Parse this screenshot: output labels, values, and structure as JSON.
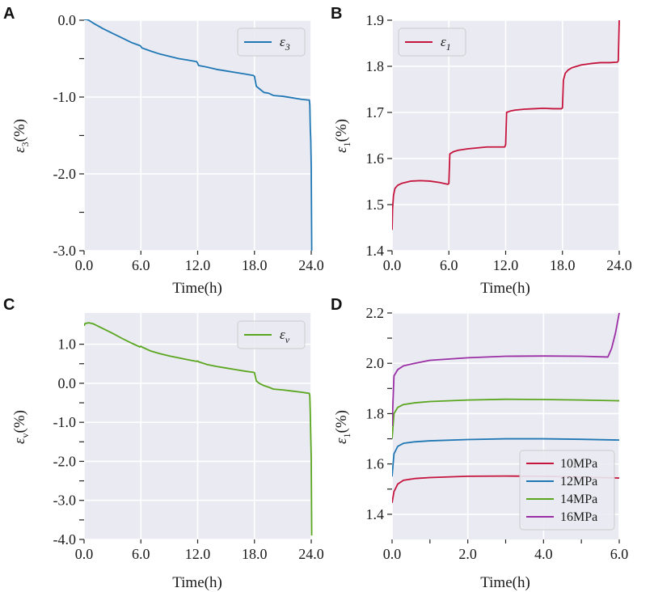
{
  "figure": {
    "background": "#eaeaf2",
    "grid_color": "#ffffff"
  },
  "chart_data": [
    {
      "panel": "A",
      "type": "line",
      "xlabel": "Time(h)",
      "ylabel": {
        "symbol": "ε",
        "sub": "3",
        "unit": "(%)"
      },
      "xlim": [
        0,
        24
      ],
      "ylim": [
        -3.0,
        0.0
      ],
      "xticks": [
        0,
        6,
        12,
        18,
        24
      ],
      "xtick_labels": [
        "0.0",
        "6.0",
        "12.0",
        "18.0",
        "24.0"
      ],
      "yticks": [
        0.0,
        -1.0,
        -2.0,
        -3.0
      ],
      "ytick_labels": [
        "0.0",
        "-1.0",
        "-2.0",
        "-3.0"
      ],
      "yminor": [
        -0.5,
        -1.5,
        -2.5
      ],
      "legend": {
        "position": "top-right",
        "entries": [
          {
            "symbol": "ε",
            "sub": "3"
          }
        ]
      },
      "series": [
        {
          "name": "ε3",
          "color": "#1f77b4",
          "x": [
            0,
            0.2,
            0.5,
            1,
            2,
            3,
            4,
            5,
            5.9,
            6.0,
            6.1,
            7,
            8,
            9,
            10,
            11,
            11.9,
            12.0,
            12.1,
            13,
            14,
            15,
            16,
            17,
            17.9,
            18.0,
            18.2,
            18.6,
            19.0,
            19.5,
            20,
            21,
            22,
            23,
            23.8,
            23.85,
            23.9,
            23.95,
            24.0,
            24.05
          ],
          "y": [
            0.01,
            0.01,
            0.0,
            -0.04,
            -0.11,
            -0.17,
            -0.23,
            -0.29,
            -0.33,
            -0.34,
            -0.36,
            -0.4,
            -0.44,
            -0.47,
            -0.5,
            -0.52,
            -0.54,
            -0.56,
            -0.59,
            -0.61,
            -0.64,
            -0.66,
            -0.68,
            -0.7,
            -0.72,
            -0.73,
            -0.86,
            -0.9,
            -0.94,
            -0.95,
            -0.98,
            -0.99,
            -1.01,
            -1.03,
            -1.04,
            -1.1,
            -1.4,
            -1.55,
            -1.9,
            -3.0
          ]
        }
      ]
    },
    {
      "panel": "B",
      "type": "line",
      "xlabel": "Time(h)",
      "ylabel": {
        "symbol": "ε",
        "sub": "1",
        "unit": "(%)"
      },
      "xlim": [
        0,
        24
      ],
      "ylim": [
        1.4,
        1.9
      ],
      "xticks": [
        0,
        6,
        12,
        18,
        24
      ],
      "xtick_labels": [
        "0.0",
        "6.0",
        "12.0",
        "18.0",
        "24.0"
      ],
      "yticks": [
        1.4,
        1.5,
        1.6,
        1.7,
        1.8,
        1.9
      ],
      "ytick_labels": [
        "1.4",
        "1.5",
        "1.6",
        "1.7",
        "1.8",
        "1.9"
      ],
      "legend": {
        "position": "top-left",
        "entries": [
          {
            "symbol": "ε",
            "sub": "1"
          }
        ]
      },
      "series": [
        {
          "name": "ε1",
          "color": "#c5143d",
          "x": [
            0,
            0.05,
            0.15,
            0.3,
            0.6,
            1,
            2,
            3,
            4,
            5,
            5.9,
            6.0,
            6.1,
            6.5,
            7,
            8,
            9,
            10,
            11,
            11.9,
            12.0,
            12.1,
            12.5,
            13,
            14,
            15,
            16,
            17,
            17.9,
            18.0,
            18.1,
            18.3,
            18.6,
            19,
            20,
            21,
            22,
            23,
            23.8,
            23.9,
            24.0
          ],
          "y": [
            1.445,
            1.49,
            1.52,
            1.535,
            1.542,
            1.546,
            1.551,
            1.552,
            1.551,
            1.548,
            1.544,
            1.546,
            1.61,
            1.615,
            1.618,
            1.621,
            1.623,
            1.625,
            1.625,
            1.625,
            1.63,
            1.7,
            1.703,
            1.705,
            1.707,
            1.708,
            1.709,
            1.708,
            1.708,
            1.71,
            1.77,
            1.785,
            1.792,
            1.797,
            1.803,
            1.806,
            1.808,
            1.808,
            1.809,
            1.812,
            1.9
          ]
        }
      ]
    },
    {
      "panel": "C",
      "type": "line",
      "xlabel": "Time(h)",
      "ylabel": {
        "symbol": "ε",
        "sub": "v",
        "unit": "(%)"
      },
      "xlim": [
        0,
        24
      ],
      "ylim": [
        -4.0,
        1.8
      ],
      "xticks": [
        0,
        6,
        12,
        18,
        24
      ],
      "xtick_labels": [
        "0.0",
        "6.0",
        "12.0",
        "18.0",
        "24.0"
      ],
      "yticks": [
        1.0,
        0.0,
        -1.0,
        -2.0,
        -3.0,
        -4.0
      ],
      "ytick_labels": [
        "1.0",
        "0.0",
        "-1.0",
        "-2.0",
        "-3.0",
        "-4.0"
      ],
      "yminor": [
        0.5,
        -0.5,
        -1.5,
        -2.5,
        -3.5
      ],
      "legend": {
        "position": "top-right",
        "entries": [
          {
            "symbol": "ε",
            "sub": "v"
          }
        ]
      },
      "series": [
        {
          "name": "εv",
          "color": "#5aa61f",
          "x": [
            0,
            0.1,
            0.5,
            1,
            2,
            3,
            4,
            5,
            5.9,
            6.0,
            6.1,
            7,
            8,
            9,
            10,
            11,
            11.9,
            12.0,
            12.1,
            13,
            14,
            15,
            16,
            17,
            17.9,
            18.0,
            18.2,
            18.5,
            19,
            19.5,
            20,
            21,
            22,
            23,
            23.8,
            23.85,
            23.9,
            23.95,
            24.0,
            24.05
          ],
          "y": [
            1.47,
            1.53,
            1.55,
            1.52,
            1.4,
            1.28,
            1.15,
            1.03,
            0.93,
            0.95,
            0.93,
            0.83,
            0.76,
            0.7,
            0.65,
            0.6,
            0.56,
            0.57,
            0.55,
            0.48,
            0.43,
            0.39,
            0.35,
            0.31,
            0.28,
            0.27,
            0.06,
            0.0,
            -0.06,
            -0.1,
            -0.15,
            -0.17,
            -0.2,
            -0.23,
            -0.26,
            -0.33,
            -0.75,
            -1.35,
            -1.9,
            -3.9
          ]
        }
      ]
    },
    {
      "panel": "D",
      "type": "line",
      "xlabel": "Time(h)",
      "ylabel": {
        "symbol": "ε",
        "sub": "1",
        "unit": "(%)"
      },
      "xlim": [
        0,
        6
      ],
      "ylim": [
        1.3,
        2.2
      ],
      "xticks": [
        0,
        2,
        4,
        6
      ],
      "xtick_labels": [
        "0.0",
        "2.0",
        "4.0",
        "6.0"
      ],
      "xminor": [
        1,
        3,
        5
      ],
      "yticks": [
        1.4,
        1.6,
        1.8,
        2.0,
        2.2
      ],
      "ytick_labels": [
        "1.4",
        "1.6",
        "1.8",
        "2.0",
        "2.2"
      ],
      "yminor": [
        1.5,
        1.7,
        1.9,
        2.1
      ],
      "legend": {
        "position": "bottom-right",
        "entries": [
          "10MPa",
          "12MPa",
          "14MPa",
          "16MPa"
        ]
      },
      "series": [
        {
          "name": "10MPa",
          "color": "#c5143d",
          "x": [
            0,
            0.05,
            0.15,
            0.3,
            0.6,
            1,
            2,
            3,
            4,
            5,
            6
          ],
          "y": [
            1.445,
            1.49,
            1.52,
            1.535,
            1.542,
            1.546,
            1.551,
            1.552,
            1.551,
            1.548,
            1.544
          ]
        },
        {
          "name": "12MPa",
          "color": "#1f77b4",
          "x": [
            0,
            0.05,
            0.15,
            0.3,
            0.6,
            1,
            2,
            3,
            4,
            5,
            6
          ],
          "y": [
            1.55,
            1.64,
            1.67,
            1.682,
            1.688,
            1.692,
            1.697,
            1.7,
            1.7,
            1.698,
            1.695
          ]
        },
        {
          "name": "14MPa",
          "color": "#5aa61f",
          "x": [
            0,
            0.05,
            0.15,
            0.3,
            0.6,
            1,
            2,
            3,
            4,
            5,
            6
          ],
          "y": [
            1.7,
            1.8,
            1.825,
            1.836,
            1.843,
            1.848,
            1.854,
            1.857,
            1.856,
            1.854,
            1.851
          ]
        },
        {
          "name": "16MPa",
          "color": "#9b2fa5",
          "x": [
            0,
            0.05,
            0.15,
            0.3,
            0.6,
            1,
            2,
            3,
            4,
            5,
            5.7,
            5.8,
            5.9,
            6.0
          ],
          "y": [
            1.75,
            1.95,
            1.975,
            1.99,
            2.0,
            2.012,
            2.022,
            2.028,
            2.029,
            2.028,
            2.025,
            2.06,
            2.12,
            2.2
          ]
        }
      ]
    }
  ]
}
